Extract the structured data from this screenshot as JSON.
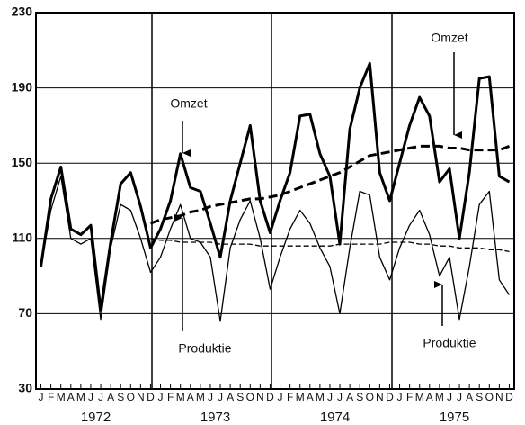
{
  "chart_data": {
    "type": "line",
    "categories": [
      "J",
      "F",
      "M",
      "A",
      "M",
      "J",
      "J",
      "A",
      "S",
      "O",
      "N",
      "D",
      "J",
      "F",
      "M",
      "A",
      "M",
      "J",
      "J",
      "A",
      "S",
      "O",
      "N",
      "D",
      "J",
      "F",
      "M",
      "A",
      "M",
      "J",
      "J",
      "A",
      "S",
      "O",
      "N",
      "D",
      "J",
      "F",
      "M",
      "A",
      "M",
      "J",
      "J",
      "A",
      "S",
      "O",
      "N",
      "D"
    ],
    "years": [
      "1972",
      "1973",
      "1974",
      "1975"
    ],
    "ylim": [
      30,
      230
    ],
    "yticks": [
      30,
      70,
      110,
      150,
      190,
      230
    ],
    "grid": true,
    "series": [
      {
        "color": "#000",
        "weight": "bold",
        "line_style": "solid",
        "values": [
          95,
          131,
          148,
          115,
          112,
          117,
          72,
          108,
          139,
          145,
          127,
          105,
          115,
          130,
          155,
          137,
          135,
          118,
          100,
          130,
          150,
          170,
          130,
          113,
          130,
          145,
          175,
          176,
          155,
          143,
          107,
          168,
          190,
          203,
          145,
          130,
          150,
          170,
          185,
          175,
          140,
          147,
          110,
          145,
          195,
          196,
          143,
          140
        ]
      },
      {
        "color": "#000",
        "weight": "light",
        "line_style": "solid",
        "values": [
          95,
          125,
          143,
          110,
          107,
          110,
          67,
          105,
          128,
          125,
          110,
          92,
          100,
          115,
          128,
          110,
          108,
          100,
          66,
          105,
          120,
          130,
          110,
          83,
          100,
          115,
          125,
          118,
          105,
          95,
          70,
          105,
          135,
          133,
          100,
          88,
          105,
          117,
          125,
          112,
          90,
          100,
          67,
          95,
          128,
          135,
          88,
          80
        ]
      },
      {
        "color": "#000",
        "weight": "bold",
        "line_style": "dashed",
        "values": [
          null,
          null,
          null,
          null,
          null,
          null,
          null,
          null,
          null,
          null,
          null,
          118,
          120,
          121,
          122,
          124,
          125,
          127,
          128,
          129,
          130,
          131,
          131,
          132,
          133,
          135,
          137,
          139,
          141,
          143,
          145,
          148,
          151,
          154,
          155,
          156,
          157,
          158,
          159,
          159,
          159,
          158,
          158,
          157,
          157,
          157,
          157,
          159
        ]
      },
      {
        "color": "#000",
        "weight": "light",
        "line_style": "dashed",
        "values": [
          null,
          null,
          null,
          null,
          null,
          null,
          null,
          null,
          null,
          null,
          null,
          110,
          109,
          109,
          108,
          108,
          108,
          108,
          107,
          107,
          107,
          107,
          106,
          106,
          106,
          106,
          106,
          106,
          106,
          106,
          107,
          107,
          107,
          107,
          107,
          108,
          108,
          108,
          107,
          107,
          106,
          106,
          105,
          105,
          105,
          104,
          104,
          103
        ]
      }
    ],
    "annotations": [
      {
        "text": "Omzet"
      },
      {
        "text": "Omzet"
      },
      {
        "text": "Produktie"
      },
      {
        "text": "Produktie"
      }
    ]
  }
}
